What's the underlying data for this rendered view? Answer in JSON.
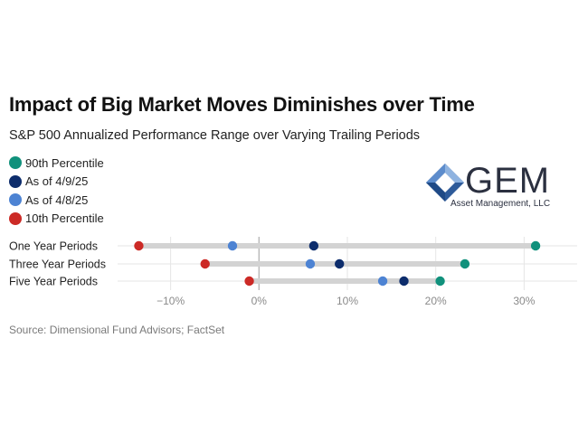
{
  "header": {
    "title": "Impact of Big Market Moves Diminishes over Time",
    "subtitle": "S&P 500 Annualized Performance Range over Varying Trailing Periods"
  },
  "logo": {
    "name": "GEM",
    "tagline": "Asset Management, LLC"
  },
  "legend": [
    {
      "label": "90th Percentile",
      "color": "#11917c"
    },
    {
      "label": "As of 4/9/25",
      "color": "#0d2d6c"
    },
    {
      "label": "As of 4/8/25",
      "color": "#4d83d3"
    },
    {
      "label": "10th Percentile",
      "color": "#cc2a26"
    }
  ],
  "chart_data": {
    "type": "scatter",
    "title": "Impact of Big Market Moves Diminishes over Time",
    "subtitle": "S&P 500 Annualized Performance Range over Varying Trailing Periods",
    "categories": [
      "One Year Periods",
      "Three Year Periods",
      "Five Year Periods"
    ],
    "series": [
      {
        "name": "90th Percentile",
        "color": "#11917c",
        "values": [
          31.3,
          23.3,
          20.5
        ]
      },
      {
        "name": "As of 4/9/25",
        "color": "#0d2d6c",
        "values": [
          6.2,
          9.1,
          16.4
        ]
      },
      {
        "name": "As of 4/8/25",
        "color": "#4d83d3",
        "values": [
          -3.0,
          5.8,
          14.0
        ]
      },
      {
        "name": "10th Percentile",
        "color": "#cc2a26",
        "values": [
          -13.6,
          -6.1,
          -1.1
        ]
      }
    ],
    "xlim": [
      -16,
      36
    ],
    "xticks": [
      -10,
      0,
      10,
      20,
      30
    ],
    "xtick_labels": [
      "−10%",
      "0%",
      "10%",
      "20%",
      "30%"
    ],
    "grid": true,
    "legend_position": "top-left"
  },
  "footer": {
    "source": "Source: Dimensional Fund Advisors; FactSet"
  }
}
